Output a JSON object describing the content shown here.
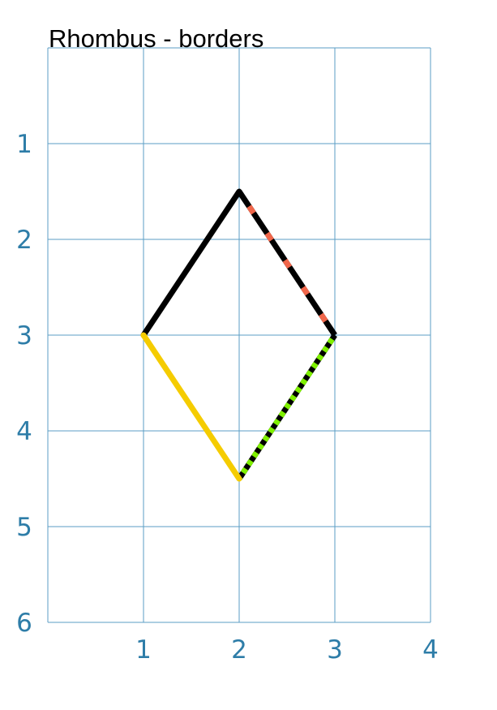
{
  "title": "Rhombus - borders",
  "colors": {
    "grid": "#5b9ec4",
    "tick_text": "#2e7da8",
    "black": "#000000",
    "red_dash": "#f0664a",
    "yellow": "#f5cc00",
    "green": "#7ff000"
  },
  "axes": {
    "x_range": [
      0,
      4
    ],
    "y_range": [
      0,
      6
    ],
    "y_inverted": true,
    "grid": true,
    "x_ticks": [
      "1",
      "2",
      "3",
      "4"
    ],
    "y_ticks": [
      "1",
      "2",
      "3",
      "4",
      "5",
      "6"
    ]
  },
  "rhombus": {
    "vertices": [
      [
        2,
        1.5
      ],
      [
        3,
        3
      ],
      [
        2,
        4.5
      ],
      [
        1,
        3
      ]
    ],
    "edges": [
      {
        "from": [
          1,
          3
        ],
        "to": [
          2,
          1.5
        ],
        "style": "solid",
        "colors": [
          "#000000"
        ]
      },
      {
        "from": [
          2,
          1.5
        ],
        "to": [
          3,
          3
        ],
        "style": "dashed",
        "colors": [
          "#000000",
          "#f0664a"
        ]
      },
      {
        "from": [
          3,
          3
        ],
        "to": [
          2,
          4.5
        ],
        "style": "dotted",
        "colors": [
          "#000000",
          "#7ff000"
        ]
      },
      {
        "from": [
          2,
          4.5
        ],
        "to": [
          1,
          3
        ],
        "style": "solid",
        "colors": [
          "#f5cc00"
        ]
      }
    ]
  }
}
